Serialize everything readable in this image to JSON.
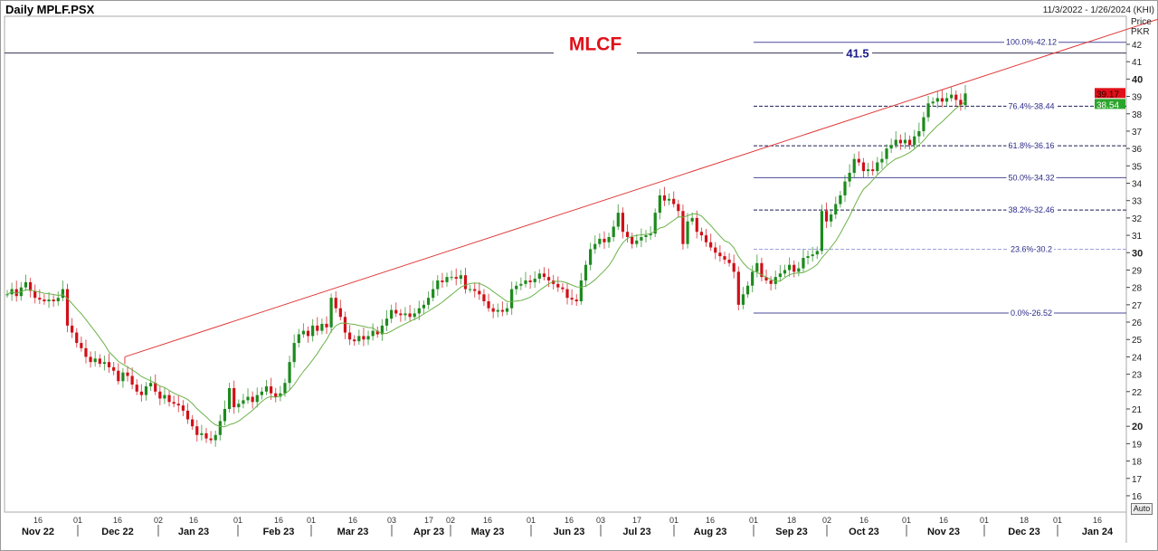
{
  "header": {
    "title": "Daily MPLF.PSX",
    "date_range": "11/3/2022 - 1/26/2024 (KHI)",
    "axis_unit_1": "Price",
    "axis_unit_2": "PKR",
    "auto_button": "Auto"
  },
  "chart_data": {
    "type": "candlestick",
    "annotation_title": "MLCF",
    "colors": {
      "up": "#1d8a1d",
      "down": "#d01018",
      "moving_average": "#6cb24a",
      "trendline": "#e03a3a",
      "annotation": "#e0101a",
      "fib_solid": "#4a4a9a",
      "fib_dashed": "#1e1e55",
      "fib_light": "#a0a0e0",
      "hline": "#333355",
      "hline_label": "#1a1a8a"
    },
    "ylim": [
      15.5,
      43
    ],
    "y_ticks": [
      16,
      17,
      18,
      19,
      20,
      21,
      22,
      23,
      24,
      25,
      26,
      27,
      28,
      29,
      30,
      31,
      32,
      33,
      34,
      35,
      36,
      37,
      38,
      39,
      40,
      41,
      42
    ],
    "y_bold_ticks": [
      20,
      30,
      40
    ],
    "first_date": "2022-11-03",
    "last_date": "2023-11-24",
    "closes": [
      27.6,
      27.9,
      27.5,
      28.0,
      28.3,
      27.8,
      27.4,
      27.3,
      27.2,
      27.3,
      27.2,
      27.4,
      27.9,
      25.8,
      25.4,
      24.8,
      24.5,
      24.0,
      23.7,
      23.9,
      23.6,
      23.7,
      23.4,
      23.2,
      22.6,
      23.1,
      22.9,
      22.4,
      22.0,
      21.8,
      22.3,
      22.5,
      22.0,
      21.6,
      21.8,
      21.4,
      21.3,
      21.2,
      20.9,
      20.4,
      20.0,
      19.5,
      19.6,
      19.3,
      19.2,
      19.5,
      20.3,
      21.0,
      22.2,
      21.1,
      21.3,
      21.5,
      21.7,
      21.4,
      21.8,
      22.0,
      22.3,
      21.9,
      21.7,
      21.9,
      22.5,
      23.7,
      24.8,
      25.3,
      25.5,
      25.2,
      25.8,
      25.5,
      25.9,
      25.7,
      27.4,
      26.8,
      26.3,
      25.4,
      25.0,
      24.9,
      25.2,
      25.0,
      25.2,
      25.5,
      25.3,
      25.8,
      26.2,
      26.7,
      26.5,
      26.4,
      26.5,
      26.3,
      26.5,
      26.8,
      27.0,
      27.4,
      27.9,
      28.4,
      28.3,
      28.6,
      28.6,
      28.5,
      28.7,
      27.9,
      27.9,
      27.8,
      27.6,
      27.2,
      26.8,
      26.6,
      26.7,
      26.6,
      26.8,
      27.9,
      28.1,
      28.2,
      28.4,
      28.3,
      28.5,
      28.8,
      28.6,
      28.4,
      28.2,
      28.0,
      27.9,
      27.4,
      27.3,
      27.2,
      28.4,
      29.3,
      30.2,
      30.5,
      30.8,
      30.6,
      30.9,
      31.5,
      32.3,
      31.2,
      30.9,
      30.5,
      30.7,
      30.9,
      31.0,
      31.1,
      32.3,
      33.3,
      33.0,
      33.1,
      32.8,
      32.4,
      30.5,
      31.8,
      32.0,
      31.2,
      31.0,
      30.6,
      30.3,
      30.0,
      29.8,
      29.6,
      29.4,
      28.9,
      27.0,
      27.6,
      28.1,
      28.9,
      29.4,
      28.6,
      28.4,
      28.2,
      28.6,
      28.8,
      29.0,
      29.3,
      28.9,
      29.1,
      29.7,
      29.8,
      29.9,
      30.1,
      32.4,
      31.8,
      32.2,
      32.8,
      33.3,
      34.1,
      34.6,
      35.4,
      35.2,
      34.7,
      34.8,
      34.7,
      35.2,
      35.4,
      36.0,
      36.2,
      36.5,
      36.3,
      36.5,
      36.2,
      36.7,
      37.0,
      37.8,
      38.6,
      38.7,
      38.9,
      38.7,
      38.9,
      39.1,
      38.8,
      38.5,
      39.17
    ],
    "last_price_labels": [
      {
        "value": "39.17",
        "color": "#e0101a"
      },
      {
        "value": "38.54",
        "color": "#2aa52a"
      }
    ],
    "trendline": [
      [
        "2022-12-19",
        24.0
      ],
      [
        "2024-01-01",
        41.56
      ]
    ],
    "horizontal_line": {
      "price": 41.5,
      "label": "41.5"
    },
    "fibonacci": {
      "start_date": "2023-09-01",
      "levels": [
        {
          "price": 42.12,
          "label": "100.0%-42.12",
          "style": "solid"
        },
        {
          "price": 38.44,
          "label": "76.4%-38.44",
          "style": "dashed"
        },
        {
          "price": 36.16,
          "label": "61.8%-36.16",
          "style": "dashed"
        },
        {
          "price": 34.32,
          "label": "50.0%-34.32",
          "style": "solid"
        },
        {
          "price": 32.46,
          "label": "38.2%-32.46",
          "style": "dashed"
        },
        {
          "price": 30.2,
          "label": "23.6%-30.2",
          "style": "light"
        },
        {
          "price": 26.52,
          "label": "0.0%-26.52",
          "style": "solid"
        }
      ]
    },
    "x_ticks": [
      {
        "date": "2022-11-16",
        "label": "16"
      },
      {
        "date": "2022-12-01",
        "label": "01"
      },
      {
        "date": "2022-12-16",
        "label": "16"
      },
      {
        "date": "2023-01-02",
        "label": "02"
      },
      {
        "date": "2023-01-16",
        "label": "16"
      },
      {
        "date": "2023-02-01",
        "label": "01"
      },
      {
        "date": "2023-02-16",
        "label": "16"
      },
      {
        "date": "2023-03-01",
        "label": "01"
      },
      {
        "date": "2023-03-16",
        "label": "16"
      },
      {
        "date": "2023-04-03",
        "label": "03"
      },
      {
        "date": "2023-04-17",
        "label": "17"
      },
      {
        "date": "2023-05-02",
        "label": "02"
      },
      {
        "date": "2023-05-16",
        "label": "16"
      },
      {
        "date": "2023-06-01",
        "label": "01"
      },
      {
        "date": "2023-06-16",
        "label": "16"
      },
      {
        "date": "2023-07-03",
        "label": "03"
      },
      {
        "date": "2023-07-17",
        "label": "17"
      },
      {
        "date": "2023-08-01",
        "label": "01"
      },
      {
        "date": "2023-08-16",
        "label": "16"
      },
      {
        "date": "2023-09-01",
        "label": "01"
      },
      {
        "date": "2023-09-18",
        "label": "18"
      },
      {
        "date": "2023-10-02",
        "label": "02"
      },
      {
        "date": "2023-10-16",
        "label": "16"
      },
      {
        "date": "2023-11-01",
        "label": "01"
      },
      {
        "date": "2023-11-16",
        "label": "16"
      },
      {
        "date": "2023-12-01",
        "label": "01"
      },
      {
        "date": "2023-12-18",
        "label": "18"
      },
      {
        "date": "2024-01-01",
        "label": "01"
      },
      {
        "date": "2024-01-16",
        "label": "16"
      }
    ],
    "months": [
      {
        "date": "2022-11-16",
        "label": "Nov 22"
      },
      {
        "date": "2022-12-16",
        "label": "Dec 22"
      },
      {
        "date": "2023-01-16",
        "label": "Jan 23"
      },
      {
        "date": "2023-02-16",
        "label": "Feb 23"
      },
      {
        "date": "2023-03-16",
        "label": "Mar 23"
      },
      {
        "date": "2023-04-17",
        "label": "Apr 23"
      },
      {
        "date": "2023-05-16",
        "label": "May 23"
      },
      {
        "date": "2023-06-16",
        "label": "Jun 23"
      },
      {
        "date": "2023-07-17",
        "label": "Jul 23"
      },
      {
        "date": "2023-08-16",
        "label": "Aug 23"
      },
      {
        "date": "2023-09-18",
        "label": "Sep 23"
      },
      {
        "date": "2023-10-16",
        "label": "Oct 23"
      },
      {
        "date": "2023-11-16",
        "label": "Nov 23"
      },
      {
        "date": "2023-12-18",
        "label": "Dec 23"
      },
      {
        "date": "2024-01-16",
        "label": "Jan 24"
      }
    ]
  }
}
